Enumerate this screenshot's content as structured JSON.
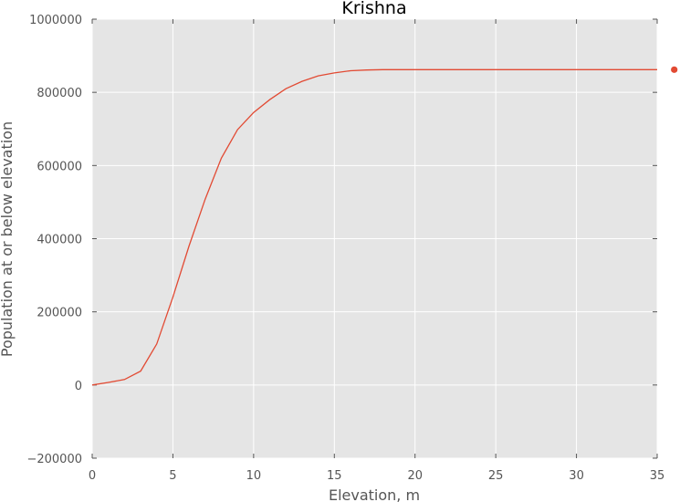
{
  "colors": {
    "plot_background": "#e5e5e5",
    "grid": "#ffffff",
    "series_line": "#e24a33",
    "text": "#555555"
  },
  "chart_data": {
    "type": "line",
    "title": "Krishna",
    "xlabel": "Elevation, m",
    "ylabel": "Population at or below elevation",
    "xlim": [
      0,
      35
    ],
    "ylim": [
      -200000,
      1000000
    ],
    "xticks": [
      0,
      5,
      10,
      15,
      20,
      25,
      30,
      35
    ],
    "yticks": [
      -200000,
      0,
      200000,
      400000,
      600000,
      800000,
      1000000
    ],
    "xtick_labels": [
      "0",
      "5",
      "10",
      "15",
      "20",
      "25",
      "30",
      "35"
    ],
    "ytick_labels": [
      "−200000",
      "0",
      "200000",
      "400000",
      "600000",
      "800000",
      "1000000"
    ],
    "grid": true,
    "series": [
      {
        "x": [
          0,
          1,
          2,
          3,
          4,
          5,
          6,
          7,
          8,
          9,
          10,
          11,
          12,
          13,
          14,
          15,
          16,
          17,
          18,
          19,
          20,
          25,
          30,
          35
        ],
        "values": [
          0,
          7000,
          15000,
          38000,
          112000,
          240000,
          380000,
          508000,
          620000,
          698000,
          745000,
          780000,
          810000,
          830000,
          845000,
          853000,
          859000,
          861000,
          862000,
          862000,
          862000,
          862000,
          862000,
          862000
        ]
      }
    ],
    "marker_point": {
      "x": 36,
      "y": 862000
    }
  }
}
